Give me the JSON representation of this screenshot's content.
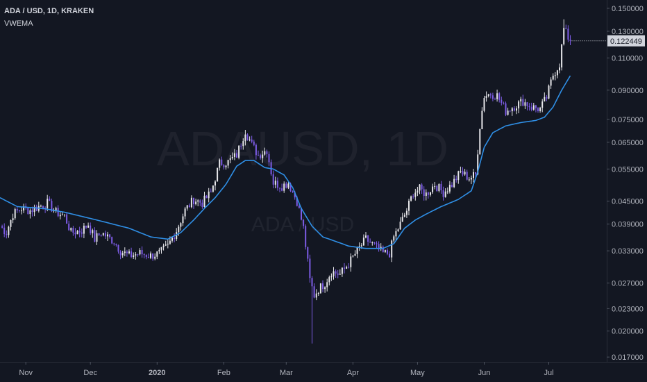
{
  "legend": {
    "symbol_line": "ADA / USD, 1D, KRAKEN",
    "indicator": "VWEMA"
  },
  "watermark": {
    "main": "ADAUSD, 1D",
    "sub": "ADA / USD"
  },
  "last_price_label": "0.122449",
  "colors": {
    "background": "#131722",
    "up_candle": "#e6e6ea",
    "down_candle": "#7d5ce6",
    "vwema_line": "#2f8fe6",
    "last_price_tag": "#d1d4dc",
    "axis_text": "#b2b5be"
  },
  "chart_data": {
    "type": "candlestick",
    "title": "ADA / USD, 1D, KRAKEN",
    "y_scale": "log",
    "ylim": [
      0.0165,
      0.158
    ],
    "grid": false,
    "y_ticks": [
      {
        "value": 0.15,
        "label": "0.150000"
      },
      {
        "value": 0.13,
        "label": "0.130000"
      },
      {
        "value": 0.11,
        "label": "0.110000"
      },
      {
        "value": 0.09,
        "label": "0.090000"
      },
      {
        "value": 0.075,
        "label": "0.075000"
      },
      {
        "value": 0.065,
        "label": "0.065000"
      },
      {
        "value": 0.055,
        "label": "0.055000"
      },
      {
        "value": 0.045,
        "label": "0.045000"
      },
      {
        "value": 0.039,
        "label": "0.039000"
      },
      {
        "value": 0.033,
        "label": "0.033000"
      },
      {
        "value": 0.027,
        "label": "0.027000"
      },
      {
        "value": 0.023,
        "label": "0.023000"
      },
      {
        "value": 0.02,
        "label": "0.020000"
      },
      {
        "value": 0.017,
        "label": "0.017000"
      }
    ],
    "x_ticks": [
      {
        "label": "Nov",
        "day": 12,
        "bold": false
      },
      {
        "label": "Dec",
        "day": 42,
        "bold": false
      },
      {
        "label": "2020",
        "day": 73,
        "bold": true
      },
      {
        "label": "Feb",
        "day": 104,
        "bold": false
      },
      {
        "label": "Mar",
        "day": 133,
        "bold": false
      },
      {
        "label": "Apr",
        "day": 164,
        "bold": false
      },
      {
        "label": "May",
        "day": 194,
        "bold": false
      },
      {
        "label": "Jun",
        "day": 225,
        "bold": false
      },
      {
        "label": "Jul",
        "day": 255,
        "bold": false
      }
    ],
    "last_price": 0.122449,
    "close_anchors": [
      [
        0,
        0.0385
      ],
      [
        3,
        0.037
      ],
      [
        6,
        0.0415
      ],
      [
        10,
        0.043
      ],
      [
        14,
        0.0425
      ],
      [
        18,
        0.0435
      ],
      [
        22,
        0.0445
      ],
      [
        26,
        0.042
      ],
      [
        30,
        0.041
      ],
      [
        33,
        0.037
      ],
      [
        38,
        0.0375
      ],
      [
        41,
        0.039
      ],
      [
        44,
        0.0355
      ],
      [
        47,
        0.037
      ],
      [
        50,
        0.036
      ],
      [
        53,
        0.035
      ],
      [
        56,
        0.033
      ],
      [
        60,
        0.032
      ],
      [
        65,
        0.0325
      ],
      [
        70,
        0.032
      ],
      [
        74,
        0.0325
      ],
      [
        78,
        0.034
      ],
      [
        82,
        0.0375
      ],
      [
        86,
        0.0425
      ],
      [
        90,
        0.0455
      ],
      [
        94,
        0.0445
      ],
      [
        98,
        0.0475
      ],
      [
        102,
        0.057
      ],
      [
        106,
        0.0575
      ],
      [
        110,
        0.06
      ],
      [
        114,
        0.07
      ],
      [
        117,
        0.064
      ],
      [
        120,
        0.06
      ],
      [
        124,
        0.062
      ],
      [
        127,
        0.0505
      ],
      [
        131,
        0.0495
      ],
      [
        134,
        0.0505
      ],
      [
        138,
        0.045
      ],
      [
        141,
        0.038
      ],
      [
        144,
        0.0275
      ],
      [
        146,
        0.025
      ],
      [
        148,
        0.026
      ],
      [
        151,
        0.027
      ],
      [
        154,
        0.029
      ],
      [
        158,
        0.0285
      ],
      [
        162,
        0.0305
      ],
      [
        166,
        0.033
      ],
      [
        170,
        0.0355
      ],
      [
        174,
        0.034
      ],
      [
        178,
        0.0325
      ],
      [
        181,
        0.0325
      ],
      [
        183,
        0.036
      ],
      [
        186,
        0.039
      ],
      [
        189,
        0.0425
      ],
      [
        192,
        0.0475
      ],
      [
        195,
        0.0485
      ],
      [
        198,
        0.047
      ],
      [
        202,
        0.05
      ],
      [
        206,
        0.0475
      ],
      [
        210,
        0.05
      ],
      [
        214,
        0.054
      ],
      [
        218,
        0.052
      ],
      [
        221,
        0.053
      ],
      [
        223,
        0.072
      ],
      [
        225,
        0.087
      ],
      [
        228,
        0.088
      ],
      [
        231,
        0.087
      ],
      [
        235,
        0.079
      ],
      [
        239,
        0.0815
      ],
      [
        243,
        0.084
      ],
      [
        247,
        0.081
      ],
      [
        251,
        0.08
      ],
      [
        254,
        0.086
      ],
      [
        257,
        0.099
      ],
      [
        260,
        0.106
      ],
      [
        262,
        0.132
      ],
      [
        264,
        0.125
      ],
      [
        265,
        0.1224
      ]
    ],
    "vwema_anchors": [
      [
        0,
        0.046
      ],
      [
        8,
        0.0435
      ],
      [
        20,
        0.043
      ],
      [
        30,
        0.042
      ],
      [
        45,
        0.04
      ],
      [
        60,
        0.038
      ],
      [
        70,
        0.036
      ],
      [
        78,
        0.0355
      ],
      [
        84,
        0.037
      ],
      [
        90,
        0.04
      ],
      [
        95,
        0.043
      ],
      [
        100,
        0.046
      ],
      [
        105,
        0.05
      ],
      [
        110,
        0.056
      ],
      [
        114,
        0.058
      ],
      [
        118,
        0.058
      ],
      [
        123,
        0.0555
      ],
      [
        127,
        0.055
      ],
      [
        132,
        0.053
      ],
      [
        136,
        0.049
      ],
      [
        140,
        0.043
      ],
      [
        145,
        0.0385
      ],
      [
        150,
        0.036
      ],
      [
        156,
        0.035
      ],
      [
        162,
        0.034
      ],
      [
        170,
        0.0335
      ],
      [
        178,
        0.0335
      ],
      [
        183,
        0.0345
      ],
      [
        188,
        0.038
      ],
      [
        193,
        0.04
      ],
      [
        198,
        0.0415
      ],
      [
        205,
        0.0435
      ],
      [
        213,
        0.0455
      ],
      [
        219,
        0.048
      ],
      [
        222,
        0.054
      ],
      [
        225,
        0.063
      ],
      [
        229,
        0.069
      ],
      [
        235,
        0.072
      ],
      [
        242,
        0.0735
      ],
      [
        249,
        0.0745
      ],
      [
        253,
        0.076
      ],
      [
        257,
        0.081
      ],
      [
        261,
        0.09
      ],
      [
        265,
        0.0985
      ]
    ]
  }
}
